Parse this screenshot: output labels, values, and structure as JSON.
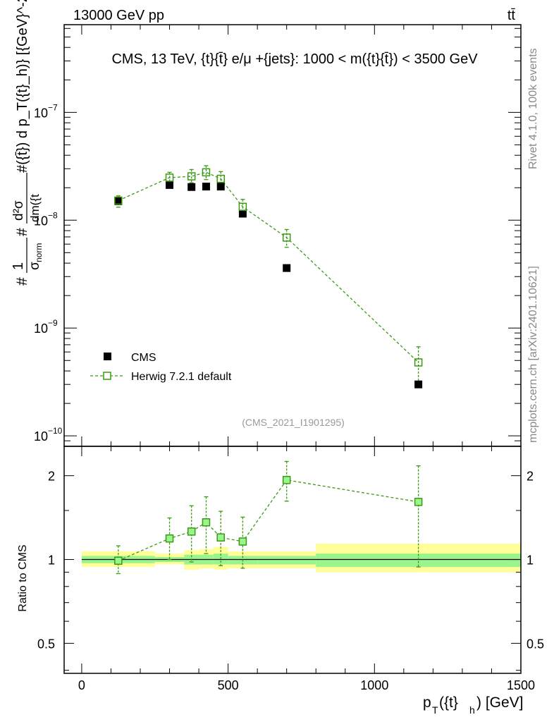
{
  "header": {
    "left_label": "13000 GeV pp",
    "right_label": "tt̄"
  },
  "side_labels": {
    "rivet": "Rivet 4.1.0,  100k events",
    "source": "mcplots.cern.ch [arXiv:2401.10621]"
  },
  "colors": {
    "cms": "#000000",
    "herwig": "#3a9a14",
    "band_outer": "#fffe99",
    "band_inner": "#99f58c"
  },
  "chart_data": [
    {
      "type": "scatter",
      "scale": "log",
      "title": "CMS, 13 TeV, {t}{t̄} e/μ +{jets}: 1000 < m({t}{t̄}) < 3500 GeV",
      "watermark": "(CMS_2021_I1901295)",
      "ylabel_prefix": "#",
      "ylabel_one": "1",
      "ylabel_sigma": "σ",
      "ylabel_sub": "norm",
      "ylabel_d2sigma": "d²σ",
      "ylabel_denominator": "dm({t",
      "ylabel_rest": "#({t̄}) d p_T({t}_h)} [{GeV}^-2]",
      "xlim": [
        -60,
        1500
      ],
      "ylim": [
        8e-11,
        6.5e-07
      ],
      "y_ticks": [
        {
          "value": 1e-10,
          "label": "10"
        },
        {
          "value": 1e-09,
          "label": "10"
        },
        {
          "value": 1e-08,
          "label": "10"
        },
        {
          "value": 1e-07,
          "label": "10"
        }
      ],
      "y_tick_exponents": [
        "−10",
        "−9",
        "−8",
        "−7"
      ],
      "legend": [
        {
          "name": "CMS",
          "marker": "filled-square"
        },
        {
          "name": "Herwig 7.2.1 default",
          "marker": "open-square-dashed"
        }
      ],
      "series": [
        {
          "name": "CMS",
          "points": [
            {
              "x": 125,
              "y": 1.5e-08
            },
            {
              "x": 300,
              "y": 2.12e-08
            },
            {
              "x": 375,
              "y": 2.03e-08
            },
            {
              "x": 425,
              "y": 2.05e-08
            },
            {
              "x": 475,
              "y": 2.05e-08
            },
            {
              "x": 550,
              "y": 1.15e-08
            },
            {
              "x": 700,
              "y": 3.6e-09
            },
            {
              "x": 1150,
              "y": 3e-10
            }
          ]
        },
        {
          "name": "Herwig 7.2.1 default",
          "points": [
            {
              "x": 125,
              "y": 1.52e-08,
              "lo": 1.32e-08,
              "hi": 1.68e-08
            },
            {
              "x": 300,
              "y": 2.48e-08,
              "lo": 2.2e-08,
              "hi": 2.78e-08
            },
            {
              "x": 375,
              "y": 2.55e-08,
              "lo": 2.22e-08,
              "hi": 2.95e-08
            },
            {
              "x": 425,
              "y": 2.78e-08,
              "lo": 2.38e-08,
              "hi": 3.2e-08
            },
            {
              "x": 475,
              "y": 2.42e-08,
              "lo": 2.06e-08,
              "hi": 2.82e-08
            },
            {
              "x": 550,
              "y": 1.33e-08,
              "lo": 1.1e-08,
              "hi": 1.56e-08
            },
            {
              "x": 700,
              "y": 6.9e-09,
              "lo": 5.6e-09,
              "hi": 8.2e-09
            },
            {
              "x": 1150,
              "y": 4.8e-10,
              "lo": 3e-10,
              "hi": 6.7e-10
            }
          ]
        }
      ]
    },
    {
      "type": "scatter",
      "scale": "log",
      "ylabel": "Ratio to CMS",
      "xlabel": "p_T({t}_h) [GeV]",
      "xlabel_main": "p",
      "xlabel_sub": "T",
      "xlabel_mid": "({t}",
      "xlabel_sub2": "h",
      "xlabel_end": ") [GeV]",
      "xlim": [
        -60,
        1500
      ],
      "ylim": [
        0.39,
        2.55
      ],
      "y_ticks": [
        {
          "value": 0.5,
          "label": "0.5"
        },
        {
          "value": 1,
          "label": "1"
        },
        {
          "value": 2,
          "label": "2"
        }
      ],
      "x_ticks": [
        {
          "value": 0,
          "label": "0"
        },
        {
          "value": 500,
          "label": "500"
        },
        {
          "value": 1000,
          "label": "1000"
        },
        {
          "value": 1500,
          "label": "1500"
        }
      ],
      "bands": [
        {
          "x0": 0,
          "x1": 250,
          "outer": [
            0.94,
            1.07
          ],
          "inner": [
            0.97,
            1.03
          ]
        },
        {
          "x0": 250,
          "x1": 350,
          "outer": [
            0.96,
            1.05
          ],
          "inner": [
            0.98,
            1.02
          ]
        },
        {
          "x0": 350,
          "x1": 400,
          "outer": [
            0.92,
            1.08
          ],
          "inner": [
            0.96,
            1.04
          ]
        },
        {
          "x0": 400,
          "x1": 450,
          "outer": [
            0.93,
            1.09
          ],
          "inner": [
            0.96,
            1.04
          ]
        },
        {
          "x0": 450,
          "x1": 500,
          "outer": [
            0.92,
            1.11
          ],
          "inner": [
            0.96,
            1.05
          ]
        },
        {
          "x0": 500,
          "x1": 600,
          "outer": [
            0.93,
            1.07
          ],
          "inner": [
            0.96,
            1.03
          ]
        },
        {
          "x0": 600,
          "x1": 800,
          "outer": [
            0.93,
            1.07
          ],
          "inner": [
            0.96,
            1.03
          ]
        },
        {
          "x0": 800,
          "x1": 1500,
          "outer": [
            0.9,
            1.14
          ],
          "inner": [
            0.94,
            1.05
          ]
        }
      ],
      "series": [
        {
          "name": "Herwig 7.2.1 default",
          "points": [
            {
              "x": 125,
              "y": 0.99,
              "lo": 0.89,
              "hi": 1.12
            },
            {
              "x": 300,
              "y": 1.19,
              "lo": 1.0,
              "hi": 1.41
            },
            {
              "x": 375,
              "y": 1.26,
              "lo": 0.98,
              "hi": 1.56
            },
            {
              "x": 425,
              "y": 1.36,
              "lo": 1.05,
              "hi": 1.68
            },
            {
              "x": 475,
              "y": 1.2,
              "lo": 0.95,
              "hi": 1.49
            },
            {
              "x": 550,
              "y": 1.16,
              "lo": 0.93,
              "hi": 1.42
            },
            {
              "x": 700,
              "y": 1.93,
              "lo": 1.62,
              "hi": 2.25
            },
            {
              "x": 1150,
              "y": 1.61,
              "lo": 0.94,
              "hi": 2.17
            }
          ]
        }
      ]
    }
  ]
}
